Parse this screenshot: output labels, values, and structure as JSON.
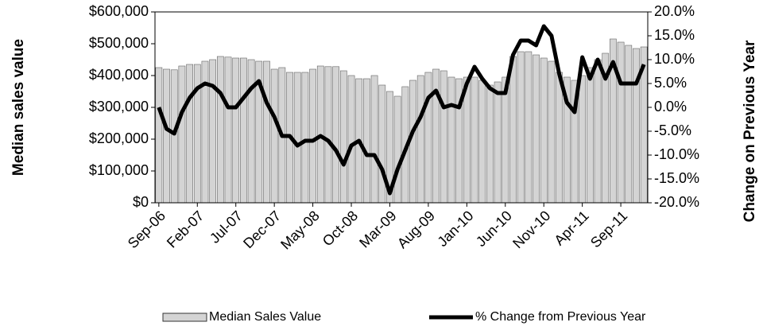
{
  "chart_data": {
    "type": "bar-line",
    "y_label": "Median sales value",
    "y2_label": "Change on Previous Year",
    "categories": [
      "Sep-06",
      null,
      null,
      null,
      null,
      "Feb-07",
      null,
      null,
      null,
      null,
      "Jul-07",
      null,
      null,
      null,
      null,
      "Dec-07",
      null,
      null,
      null,
      null,
      "May-08",
      null,
      null,
      null,
      null,
      "Oct-08",
      null,
      null,
      null,
      null,
      "Mar-09",
      null,
      null,
      null,
      null,
      "Aug-09",
      null,
      null,
      null,
      null,
      "Jan-10",
      null,
      null,
      null,
      null,
      "Jun-10",
      null,
      null,
      null,
      null,
      "Nov-10",
      null,
      null,
      null,
      null,
      "Apr-11",
      null,
      null,
      null,
      null,
      "Sep-11",
      null,
      null,
      null
    ],
    "series": [
      {
        "name": "Median Sales Value",
        "type": "bar",
        "color": "#d4d4d4",
        "values": [
          425000,
          420000,
          418000,
          430000,
          435000,
          435000,
          445000,
          450000,
          460000,
          458000,
          455000,
          455000,
          450000,
          445000,
          445000,
          420000,
          425000,
          410000,
          410000,
          410000,
          420000,
          430000,
          428000,
          428000,
          415000,
          400000,
          390000,
          390000,
          400000,
          370000,
          350000,
          335000,
          365000,
          385000,
          400000,
          410000,
          420000,
          415000,
          395000,
          390000,
          395000,
          395000,
          385000,
          370000,
          380000,
          395000,
          460000,
          475000,
          475000,
          465000,
          455000,
          445000,
          410000,
          395000,
          385000,
          400000,
          425000,
          450000,
          470000,
          515000,
          505000,
          495000,
          485000,
          490000
        ]
      },
      {
        "name": "% Change from Previous Year",
        "type": "line",
        "axis": "y2",
        "color": "#000000",
        "values": [
          0,
          -4.5,
          -5.5,
          -1,
          2,
          4,
          5,
          4.5,
          3,
          0,
          0,
          2,
          4,
          5.5,
          1,
          -2,
          -6,
          -6,
          -8,
          -7,
          -7,
          -6,
          -7,
          -9,
          -12,
          -8,
          -7,
          -10,
          -10,
          -13,
          -18,
          -13,
          -9,
          -5,
          -2,
          2,
          3.5,
          0,
          0.5,
          0,
          5,
          8.5,
          6,
          4,
          3,
          3,
          11,
          14,
          14,
          13,
          17,
          15,
          7,
          1,
          -1,
          10.5,
          6,
          10,
          6,
          9.5,
          5,
          5,
          5,
          9
        ]
      }
    ],
    "ylim": [
      0,
      600000
    ],
    "yticks": [
      {
        "value": 0,
        "label": "$0"
      },
      {
        "value": 100000,
        "label": "$100,000"
      },
      {
        "value": 200000,
        "label": "$200,000"
      },
      {
        "value": 300000,
        "label": "$300,000"
      },
      {
        "value": 400000,
        "label": "$400,000"
      },
      {
        "value": 500000,
        "label": "$500,000"
      },
      {
        "value": 600000,
        "label": "$600,000"
      }
    ],
    "y2lim": [
      -20,
      20
    ],
    "y2ticks": [
      {
        "value": -20,
        "label": "-20.0%"
      },
      {
        "value": -15,
        "label": "-15.0%"
      },
      {
        "value": -10,
        "label": "-10.0%"
      },
      {
        "value": -5,
        "label": "-5.0%"
      },
      {
        "value": 0,
        "label": "0.0%"
      },
      {
        "value": 5,
        "label": "5.0%"
      },
      {
        "value": 10,
        "label": "10.0%"
      },
      {
        "value": 15,
        "label": "15.0%"
      },
      {
        "value": 20,
        "label": "20.0%"
      }
    ],
    "legend": "bottom"
  }
}
